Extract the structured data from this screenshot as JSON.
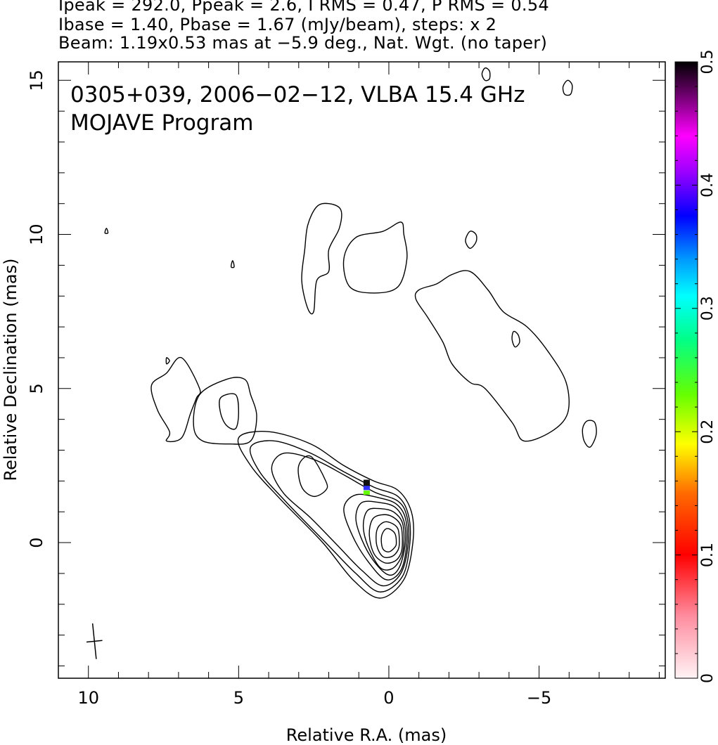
{
  "header": {
    "line1": "Ipeak = 292.0, Ppeak = 2.6, I RMS = 0.47, P RMS = 0.54",
    "line2": "Ibase = 1.40, Pbase = 1.67 (mJy/beam), steps: x 2",
    "line3": "Beam: 1.19x0.53 mas at −5.9 deg., Nat. Wgt. (no taper)"
  },
  "chart_data": {
    "type": "contour",
    "annotation_line1": "0305+039, 2006−02−12, VLBA 15.4 GHz",
    "annotation_line2": "MOJAVE Program",
    "xlabel": "Relative R.A. (mas)",
    "ylabel": "Relative Declination (mas)",
    "xlim": [
      11,
      -9.2
    ],
    "ylim": [
      -4.4,
      15.6
    ],
    "x_ticks": [
      10,
      5,
      0,
      -5
    ],
    "x_tick_labels": [
      "10",
      "5",
      "0",
      "−5"
    ],
    "y_ticks": [
      0,
      5,
      10,
      15
    ],
    "y_tick_labels": [
      "0",
      "5",
      "10",
      "15"
    ],
    "colorbar": {
      "range": [
        0,
        0.5
      ],
      "ticks": [
        0,
        0.1,
        0.2,
        0.3,
        0.4,
        0.5
      ],
      "tick_labels": [
        "0",
        "0.1",
        "0.2",
        "0.3",
        "0.4",
        "0.5"
      ]
    },
    "contours": [
      {
        "name": "core-1",
        "points": [
          [
            -0.8,
            0
          ],
          [
            -0.75,
            1
          ],
          [
            -0.3,
            1.7
          ],
          [
            0.5,
            2
          ],
          [
            1.5,
            2.5
          ],
          [
            2.6,
            3.2
          ],
          [
            4,
            3.6
          ],
          [
            5,
            3.4
          ],
          [
            4.6,
            2.5
          ],
          [
            3.6,
            1.4
          ],
          [
            2.2,
            0
          ],
          [
            1.2,
            -1.2
          ],
          [
            0.3,
            -1.8
          ],
          [
            -0.5,
            -1.2
          ]
        ]
      },
      {
        "name": "core-2",
        "points": [
          [
            -0.7,
            0
          ],
          [
            -0.65,
            0.9
          ],
          [
            -0.3,
            1.5
          ],
          [
            0.5,
            1.8
          ],
          [
            1.5,
            2.3
          ],
          [
            2.6,
            2.9
          ],
          [
            3.8,
            3.3
          ],
          [
            4.6,
            3.1
          ],
          [
            4.3,
            2.3
          ],
          [
            3.4,
            1.3
          ],
          [
            2.1,
            0
          ],
          [
            1.1,
            -1
          ],
          [
            0.3,
            -1.6
          ],
          [
            -0.45,
            -1.1
          ]
        ]
      },
      {
        "name": "core-3",
        "points": [
          [
            -0.65,
            0
          ],
          [
            -0.6,
            0.85
          ],
          [
            -0.3,
            1.35
          ],
          [
            0.5,
            1.65
          ],
          [
            1.5,
            2.2
          ],
          [
            2.5,
            2.7
          ],
          [
            3.5,
            2.9
          ],
          [
            3.9,
            2.4
          ],
          [
            3.5,
            1.6
          ],
          [
            2.6,
            0.8
          ],
          [
            1.7,
            -0.1
          ],
          [
            0.9,
            -0.9
          ],
          [
            0.2,
            -1.4
          ],
          [
            -0.4,
            -1
          ]
        ]
      },
      {
        "name": "core-4",
        "points": [
          [
            -0.6,
            0
          ],
          [
            -0.55,
            0.8
          ],
          [
            -0.25,
            1.25
          ],
          [
            0.3,
            1.45
          ],
          [
            1.1,
            1.55
          ],
          [
            1.5,
            1.1
          ],
          [
            1.2,
            0.2
          ],
          [
            0.7,
            -0.6
          ],
          [
            0.1,
            -1.2
          ],
          [
            -0.4,
            -0.9
          ]
        ]
      },
      {
        "name": "core-5",
        "points": [
          [
            -0.55,
            0
          ],
          [
            -0.5,
            0.7
          ],
          [
            -0.2,
            1.15
          ],
          [
            0.3,
            1.3
          ],
          [
            0.9,
            1.3
          ],
          [
            1.1,
            0.8
          ],
          [
            0.9,
            0.1
          ],
          [
            0.5,
            -0.6
          ],
          [
            0,
            -1.05
          ],
          [
            -0.35,
            -0.8
          ]
        ]
      },
      {
        "name": "core-6",
        "points": [
          [
            -0.5,
            0
          ],
          [
            -0.45,
            0.65
          ],
          [
            -0.15,
            1
          ],
          [
            0.25,
            1.1
          ],
          [
            0.7,
            1.05
          ],
          [
            0.85,
            0.55
          ],
          [
            0.7,
            -0.1
          ],
          [
            0.3,
            -0.8
          ],
          [
            -0.1,
            -0.85
          ],
          [
            -0.4,
            -0.5
          ]
        ]
      },
      {
        "name": "core-7",
        "points": [
          [
            -0.45,
            0
          ],
          [
            -0.4,
            0.55
          ],
          [
            -0.1,
            0.85
          ],
          [
            0.25,
            0.9
          ],
          [
            0.55,
            0.75
          ],
          [
            0.65,
            0.25
          ],
          [
            0.5,
            -0.35
          ],
          [
            0.15,
            -0.65
          ],
          [
            -0.2,
            -0.6
          ],
          [
            -0.4,
            -0.35
          ]
        ]
      },
      {
        "name": "core-8",
        "points": [
          [
            -0.35,
            0
          ],
          [
            -0.3,
            0.45
          ],
          [
            -0.05,
            0.65
          ],
          [
            0.2,
            0.65
          ],
          [
            0.4,
            0.4
          ],
          [
            0.4,
            -0.1
          ],
          [
            0.2,
            -0.45
          ],
          [
            -0.1,
            -0.45
          ],
          [
            -0.3,
            -0.25
          ]
        ]
      },
      {
        "name": "core-9",
        "points": [
          [
            -0.25,
            0
          ],
          [
            -0.2,
            0.3
          ],
          [
            0,
            0.45
          ],
          [
            0.15,
            0.4
          ],
          [
            0.25,
            0.15
          ],
          [
            0.2,
            -0.2
          ],
          [
            0,
            -0.3
          ],
          [
            -0.2,
            -0.15
          ]
        ]
      },
      {
        "name": "knot-inner",
        "points": [
          [
            2.1,
            2
          ],
          [
            2.6,
            2.8
          ],
          [
            3,
            2.5
          ],
          [
            2.9,
            1.8
          ],
          [
            2.5,
            1.5
          ],
          [
            2.1,
            1.7
          ]
        ]
      },
      {
        "name": "blob-left-a",
        "points": [
          [
            6.3,
            5
          ],
          [
            6.9,
            6
          ],
          [
            7.4,
            5.5
          ],
          [
            7.9,
            5.1
          ],
          [
            7.7,
            4.3
          ],
          [
            7.3,
            3.6
          ],
          [
            7.4,
            3.3
          ],
          [
            6.9,
            3.4
          ],
          [
            6.6,
            4.2
          ],
          [
            6.4,
            4.7
          ]
        ]
      },
      {
        "name": "blob-left-b",
        "points": [
          [
            4.8,
            5.3
          ],
          [
            5.4,
            5.3
          ],
          [
            6.3,
            4.8
          ],
          [
            6.5,
            3.8
          ],
          [
            6.2,
            3.3
          ],
          [
            5.3,
            3.2
          ],
          [
            4.6,
            3.3
          ],
          [
            4.4,
            4.1
          ],
          [
            4.6,
            4.8
          ]
        ]
      },
      {
        "name": "blob-left-b-inner",
        "points": [
          [
            5.1,
            4.8
          ],
          [
            5.6,
            4.7
          ],
          [
            5.6,
            4.2
          ],
          [
            5.4,
            3.8
          ],
          [
            5.1,
            3.7
          ],
          [
            5,
            4.2
          ]
        ]
      },
      {
        "name": "blob-top-a",
        "points": [
          [
            2,
            11
          ],
          [
            2.4,
            10.9
          ],
          [
            2.7,
            10.3
          ],
          [
            2.8,
            9.5
          ],
          [
            2.9,
            8.5
          ],
          [
            2.7,
            7.6
          ],
          [
            2.5,
            7.5
          ],
          [
            2.4,
            8.5
          ],
          [
            2,
            8.8
          ],
          [
            2,
            9.5
          ],
          [
            1.65,
            10.2
          ],
          [
            1.6,
            10.8
          ]
        ]
      },
      {
        "name": "blob-top-b",
        "points": [
          [
            -0.4,
            10.4
          ],
          [
            0.2,
            10.1
          ],
          [
            1.1,
            9.9
          ],
          [
            1.5,
            9.2
          ],
          [
            1.3,
            8.3
          ],
          [
            0.5,
            8.1
          ],
          [
            -0.3,
            8.3
          ],
          [
            -0.6,
            9.2
          ],
          [
            -0.5,
            10
          ]
        ]
      },
      {
        "name": "blob-east-jet",
        "points": [
          [
            -1.6,
            8.4
          ],
          [
            -2.1,
            8.7
          ],
          [
            -2.7,
            8.8
          ],
          [
            -3.3,
            8.2
          ],
          [
            -3.8,
            7.5
          ],
          [
            -4.6,
            7
          ],
          [
            -5.3,
            6.2
          ],
          [
            -5.9,
            5.2
          ],
          [
            -5.95,
            4.2
          ],
          [
            -5.4,
            3.6
          ],
          [
            -4.5,
            3.3
          ],
          [
            -4.1,
            3.9
          ],
          [
            -3.2,
            5
          ],
          [
            -2.7,
            5.2
          ],
          [
            -2.1,
            5.8
          ],
          [
            -1.8,
            6.5
          ],
          [
            -1.3,
            7.3
          ],
          [
            -0.9,
            7.9
          ],
          [
            -1,
            8.2
          ]
        ]
      },
      {
        "name": "island-1",
        "points": [
          [
            -2.7,
            10.1
          ],
          [
            -2.9,
            10.0
          ],
          [
            -2.9,
            9.75
          ],
          [
            -2.7,
            9.55
          ],
          [
            -2.55,
            9.8
          ]
        ]
      },
      {
        "name": "island-2",
        "points": [
          [
            -4.15,
            6.85
          ],
          [
            -4.3,
            6.75
          ],
          [
            -4.35,
            6.5
          ],
          [
            -4.2,
            6.35
          ],
          [
            -4.1,
            6.6
          ]
        ]
      },
      {
        "name": "island-3",
        "points": [
          [
            -6.6,
            3.95
          ],
          [
            -6.85,
            3.9
          ],
          [
            -6.9,
            3.5
          ],
          [
            -6.7,
            3.1
          ],
          [
            -6.5,
            3.3
          ],
          [
            -6.45,
            3.7
          ]
        ]
      },
      {
        "name": "island-4",
        "points": [
          [
            -3.2,
            15.4
          ],
          [
            -3.35,
            15.3
          ],
          [
            -3.35,
            15.05
          ],
          [
            -3.2,
            15
          ],
          [
            -3.1,
            15.2
          ]
        ]
      },
      {
        "name": "island-5",
        "points": [
          [
            -5.95,
            15.0
          ],
          [
            -6.1,
            14.85
          ],
          [
            -6.05,
            14.55
          ],
          [
            -5.85,
            14.55
          ],
          [
            -5.8,
            14.8
          ]
        ]
      },
      {
        "name": "speck-1",
        "points": [
          [
            9.4,
            10.2
          ],
          [
            9.35,
            10.05
          ],
          [
            9.45,
            10.05
          ]
        ]
      },
      {
        "name": "speck-2",
        "points": [
          [
            5.2,
            9.15
          ],
          [
            5.15,
            8.95
          ],
          [
            5.25,
            8.95
          ]
        ]
      },
      {
        "name": "speck-3",
        "points": [
          [
            7.4,
            6.0
          ],
          [
            7.3,
            5.9
          ],
          [
            7.4,
            5.8
          ]
        ]
      }
    ],
    "beam": {
      "x": 9.8,
      "y": -3.2,
      "major": 1.19,
      "minor": 0.53,
      "pa_deg": -5.9
    },
    "polarization_marks": [
      {
        "x": 0.75,
        "y": 1.95,
        "value": 0.5
      },
      {
        "x": 0.75,
        "y": 1.85,
        "value": 0.48
      },
      {
        "x": 0.75,
        "y": 1.75,
        "value": 0.4
      },
      {
        "x": 0.75,
        "y": 1.6,
        "value": 0.22
      }
    ]
  }
}
